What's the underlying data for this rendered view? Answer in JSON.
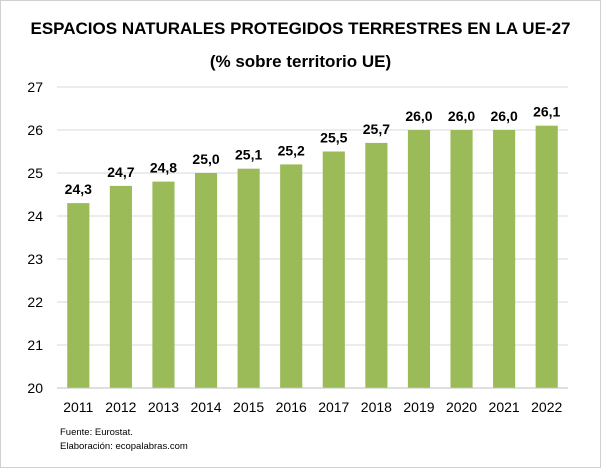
{
  "chart_data": {
    "type": "bar",
    "title": "ESPACIOS NATURALES PROTEGIDOS TERRESTRES EN LA UE-27",
    "subtitle": "(% sobre territorio UE)",
    "categories": [
      "2011",
      "2012",
      "2013",
      "2014",
      "2015",
      "2016",
      "2017",
      "2018",
      "2019",
      "2020",
      "2021",
      "2022"
    ],
    "values": [
      24.3,
      24.7,
      24.8,
      25.0,
      25.1,
      25.2,
      25.5,
      25.7,
      26.0,
      26.0,
      26.0,
      26.1
    ],
    "value_labels": [
      "24,3",
      "24,7",
      "24,8",
      "25,0",
      "25,1",
      "25,2",
      "25,5",
      "25,7",
      "26,0",
      "26,0",
      "26,0",
      "26,1"
    ],
    "ylim": [
      20,
      27
    ],
    "yticks": [
      "20",
      "21",
      "22",
      "23",
      "24",
      "25",
      "26",
      "27"
    ],
    "grid": true,
    "bar_color": "#9bbb59",
    "grid_color": "#d9d9d9"
  },
  "footer": {
    "source": "Fuente: Eurostat.",
    "credit": "Elaboración: ecopalabras.com"
  }
}
